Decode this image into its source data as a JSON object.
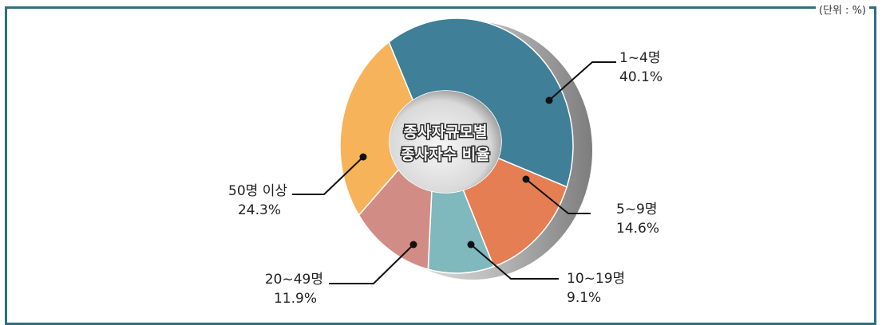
{
  "header_note": "(단위 : %)",
  "chart_data": {
    "type": "pie",
    "title": "종사자규모별 종사자수 비율",
    "center_lines": [
      "종사자규모별",
      "종사자수 비율"
    ],
    "categories": [
      "1~4명",
      "5~9명",
      "10~19명",
      "20~49명",
      "50명 이상"
    ],
    "values": [
      40.1,
      14.6,
      9.1,
      11.9,
      24.3
    ],
    "value_labels": [
      "40.1%",
      "14.6%",
      "9.1%",
      "11.9%",
      "24.3%"
    ],
    "colors": [
      "#3f7f98",
      "#e67e53",
      "#7fb8bd",
      "#d28c86",
      "#f7b35a"
    ],
    "donut": true,
    "legend": "none"
  }
}
